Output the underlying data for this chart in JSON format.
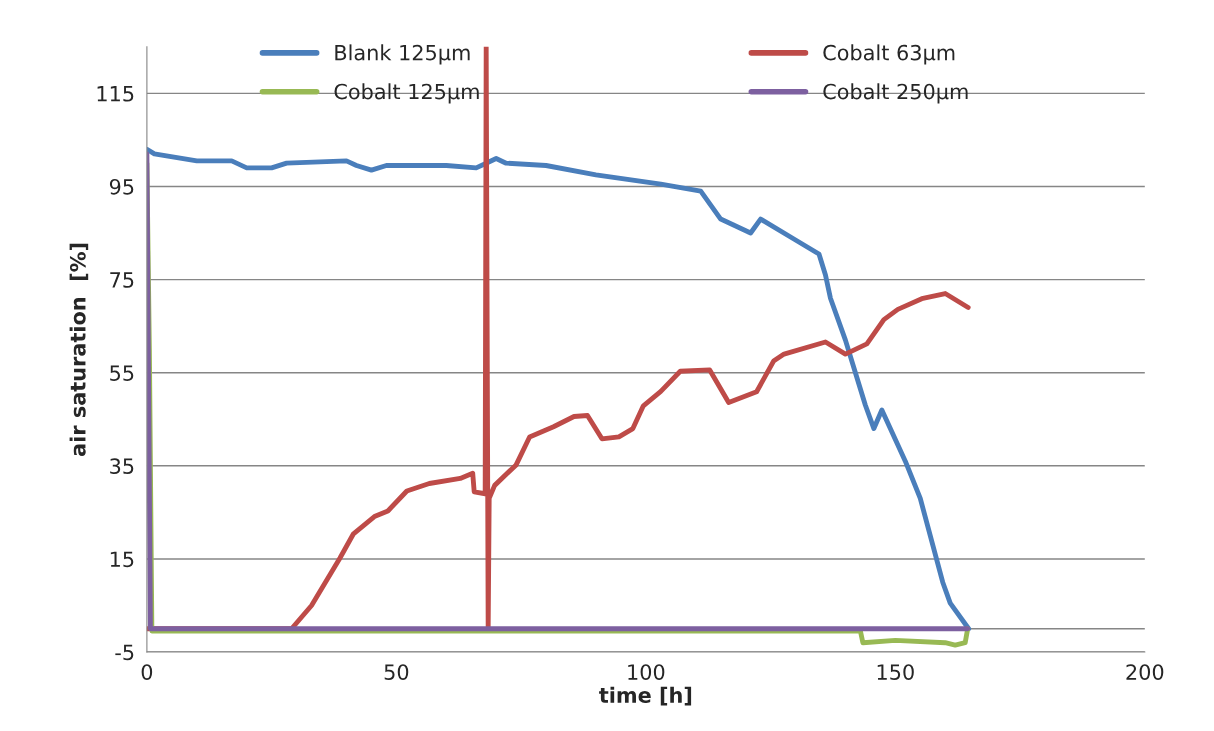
{
  "chart_data": {
    "type": "line",
    "xlabel": "time [h]",
    "ylabel": "air saturation  [%]",
    "xlim": [
      0,
      200
    ],
    "xticks": [
      0,
      50,
      100,
      150,
      200
    ],
    "ylim": [
      -5,
      125
    ],
    "yticks": [
      -5,
      15,
      35,
      55,
      75,
      95,
      115
    ],
    "grid": "y",
    "legend": "top",
    "line_style": "solid",
    "marker": "none",
    "ref_lines": [
      {
        "axis": "y",
        "value": 0,
        "color": "#868686"
      }
    ],
    "series": [
      {
        "name": "Blank 125µm",
        "color": "#4a7ebb",
        "x": [
          0,
          1.5,
          10,
          17,
          20,
          25,
          28,
          40,
          42,
          45,
          48,
          60,
          66,
          68,
          70,
          72,
          80,
          90,
          103,
          111,
          113,
          115,
          121,
          123,
          130,
          134.7,
          136,
          137,
          140,
          142,
          144,
          145.7,
          147.3,
          152,
          155,
          159.5,
          161,
          164.7
        ],
        "values": [
          103,
          102,
          100.5,
          100.5,
          99,
          99,
          100,
          100.5,
          99.5,
          98.5,
          99.5,
          99.5,
          99,
          100,
          101,
          100,
          99.5,
          97.5,
          95.5,
          94,
          91,
          88,
          85,
          88,
          83.5,
          80.5,
          76,
          71,
          62,
          55,
          48,
          43,
          47,
          36,
          28,
          10,
          5.5,
          0
        ]
      },
      {
        "name": "Cobalt 63µm",
        "color": "#be4b48",
        "x": [
          0,
          1,
          29,
          33,
          38.7,
          41.4,
          45.6,
          48.3,
          52.1,
          56.6,
          62.8,
          65.3,
          65.6,
          67.8,
          68,
          68.4,
          68.6,
          69.7,
          74,
          76.7,
          81.5,
          85.6,
          88.3,
          91.2,
          94.6,
          97.4,
          99.5,
          103,
          106.9,
          112.8,
          116.6,
          122.2,
          125.6,
          127.7,
          136,
          140,
          144.3,
          147.7,
          150.5,
          155.3,
          160,
          164.6
        ],
        "values": [
          0,
          0,
          0,
          5,
          15.2,
          20.4,
          24.1,
          25.3,
          29.6,
          31.2,
          32.3,
          33.4,
          29.4,
          29,
          125,
          0,
          28,
          30.8,
          35.2,
          41.2,
          43.4,
          45.6,
          45.8,
          40.8,
          41.2,
          43,
          47.9,
          51,
          55.3,
          55.6,
          48.6,
          50.9,
          57.5,
          59,
          61.6,
          59,
          61.2,
          66.4,
          68.6,
          70.9,
          72,
          69
        ]
      },
      {
        "name": "Cobalt 125µm",
        "color": "#98b954",
        "x": [
          0,
          0.5,
          1,
          143,
          143.5,
          150,
          160,
          162,
          164,
          164.5
        ],
        "values": [
          100,
          60,
          -0.5,
          -0.5,
          -3,
          -2.5,
          -3,
          -3.5,
          -3,
          0
        ]
      },
      {
        "name": "Cobalt 250µm",
        "color": "#7d60a0",
        "x": [
          0,
          0.7,
          1,
          164.5
        ],
        "values": [
          102,
          0,
          0,
          0
        ]
      }
    ]
  }
}
